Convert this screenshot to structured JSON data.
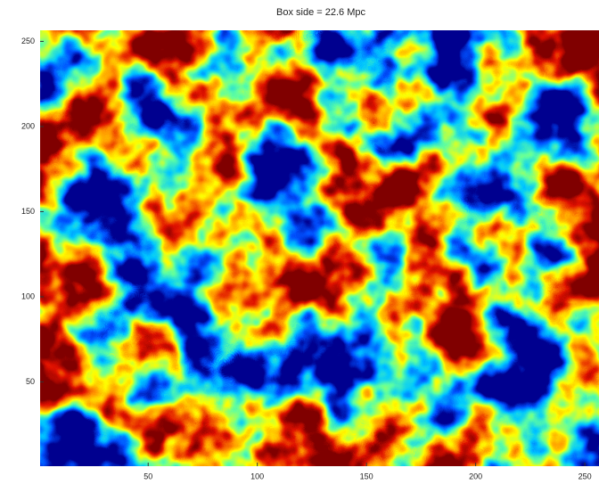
{
  "chart_data": {
    "type": "heatmap",
    "title": "Box side = 22.6 Mpc",
    "xlim": [
      0.5,
      256.5
    ],
    "ylim": [
      0.5,
      256.5
    ],
    "xticks": [
      50,
      100,
      150,
      200,
      250
    ],
    "yticks": [
      50,
      100,
      150,
      200,
      250
    ],
    "colormap": [
      "#00008f",
      "#0050ff",
      "#00c8ff",
      "#60ffa0",
      "#ffff00",
      "#ff9000",
      "#e01000",
      "#800000"
    ]
  }
}
